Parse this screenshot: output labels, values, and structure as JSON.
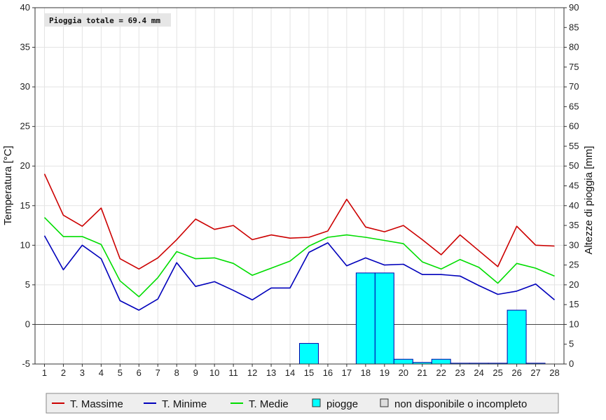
{
  "chart_data": {
    "type": "line",
    "x": [
      1,
      2,
      3,
      4,
      5,
      6,
      7,
      8,
      9,
      10,
      11,
      12,
      13,
      14,
      15,
      16,
      17,
      18,
      19,
      20,
      21,
      22,
      23,
      24,
      25,
      26,
      27,
      28
    ],
    "series": [
      {
        "name": "T. Massime",
        "color": "#cc0000",
        "axis": "left",
        "values": [
          19.0,
          13.8,
          12.4,
          14.7,
          8.3,
          7.0,
          8.4,
          10.7,
          13.3,
          12.0,
          12.5,
          10.7,
          11.3,
          10.9,
          11.0,
          11.8,
          15.8,
          12.3,
          11.7,
          12.5,
          10.7,
          8.8,
          11.3,
          9.3,
          7.3,
          12.4,
          10.0,
          9.9
        ]
      },
      {
        "name": "T. Minime",
        "color": "#0000bb",
        "axis": "left",
        "values": [
          11.2,
          6.9,
          10.0,
          8.3,
          3.0,
          1.8,
          3.2,
          7.8,
          4.8,
          5.4,
          4.3,
          3.1,
          4.6,
          4.6,
          9.1,
          10.3,
          7.4,
          8.4,
          7.5,
          7.6,
          6.3,
          6.3,
          6.1,
          4.9,
          3.8,
          4.2,
          5.1,
          3.1
        ]
      },
      {
        "name": "T. Medie",
        "color": "#00dd00",
        "axis": "left",
        "values": [
          13.5,
          11.1,
          11.1,
          10.1,
          5.5,
          3.5,
          5.9,
          9.2,
          8.3,
          8.4,
          7.7,
          6.2,
          7.1,
          8.0,
          9.9,
          11.0,
          11.3,
          11.0,
          10.6,
          10.2,
          7.9,
          7.0,
          8.2,
          7.2,
          5.2,
          7.7,
          7.1,
          6.1
        ]
      },
      {
        "name": "piogge",
        "color": "#00ffff",
        "type": "bar",
        "axis": "right",
        "values": [
          0,
          0,
          0,
          0,
          0,
          0,
          0,
          0,
          0,
          0,
          0,
          0,
          0,
          0,
          5.2,
          0,
          0,
          23.0,
          23.0,
          1.2,
          0.4,
          1.2,
          0.2,
          0.2,
          0.2,
          13.6,
          0.2,
          0
        ]
      }
    ],
    "ylabel": "Temperatura [°C]",
    "y2label": "Altezze di pioggia [mm]",
    "ylim": [
      -5,
      40
    ],
    "y2lim": [
      0,
      90
    ],
    "yticks": [
      -5,
      0,
      5,
      10,
      15,
      20,
      25,
      30,
      35,
      40
    ],
    "y2ticks": [
      0,
      5,
      10,
      15,
      20,
      25,
      30,
      35,
      40,
      45,
      50,
      55,
      60,
      65,
      70,
      75,
      80,
      85,
      90
    ],
    "annotation": "Pioggia totale = 69.4 mm",
    "legend": {
      "placement": "bottom",
      "entries": [
        {
          "label": "T. Massime",
          "kind": "line",
          "color": "#cc0000"
        },
        {
          "label": "T. Minime",
          "kind": "line",
          "color": "#0000bb"
        },
        {
          "label": "T. Medie",
          "kind": "line",
          "color": "#00dd00"
        },
        {
          "label": "piogge",
          "kind": "box",
          "color": "#00ffff"
        },
        {
          "label": "non disponibile o incompleto",
          "kind": "box",
          "color": "#dddddd"
        }
      ]
    },
    "grid": true
  }
}
